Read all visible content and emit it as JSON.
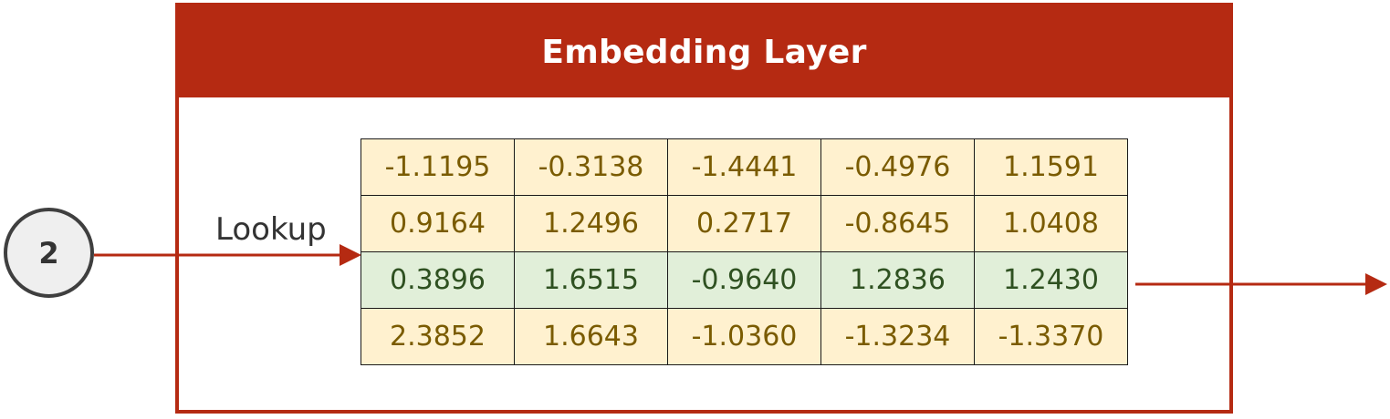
{
  "layer": {
    "title": "Embedding Layer"
  },
  "input": {
    "token_index": "2"
  },
  "lookup_label": "Lookup",
  "embedding_matrix": {
    "selected_row_index": 2,
    "rows": [
      [
        "-1.1195",
        "-0.3138",
        "-1.4441",
        "-0.4976",
        "1.1591"
      ],
      [
        "0.9164",
        "1.2496",
        "0.2717",
        "-0.8645",
        "1.0408"
      ],
      [
        "0.3896",
        "1.6515",
        "-0.9640",
        "1.2836",
        "1.2430"
      ],
      [
        "2.3852",
        "1.6643",
        "-1.0360",
        "-1.3234",
        "-1.3370"
      ]
    ]
  },
  "colors": {
    "frame_accent": "#b52a12",
    "row_fill": "#fff1cf",
    "row_text": "#7a5b00",
    "selected_row_fill": "#e1efd9",
    "selected_row_text": "#2f5121",
    "circle_fill": "#efefef",
    "circle_border": "#3f3f3f"
  }
}
